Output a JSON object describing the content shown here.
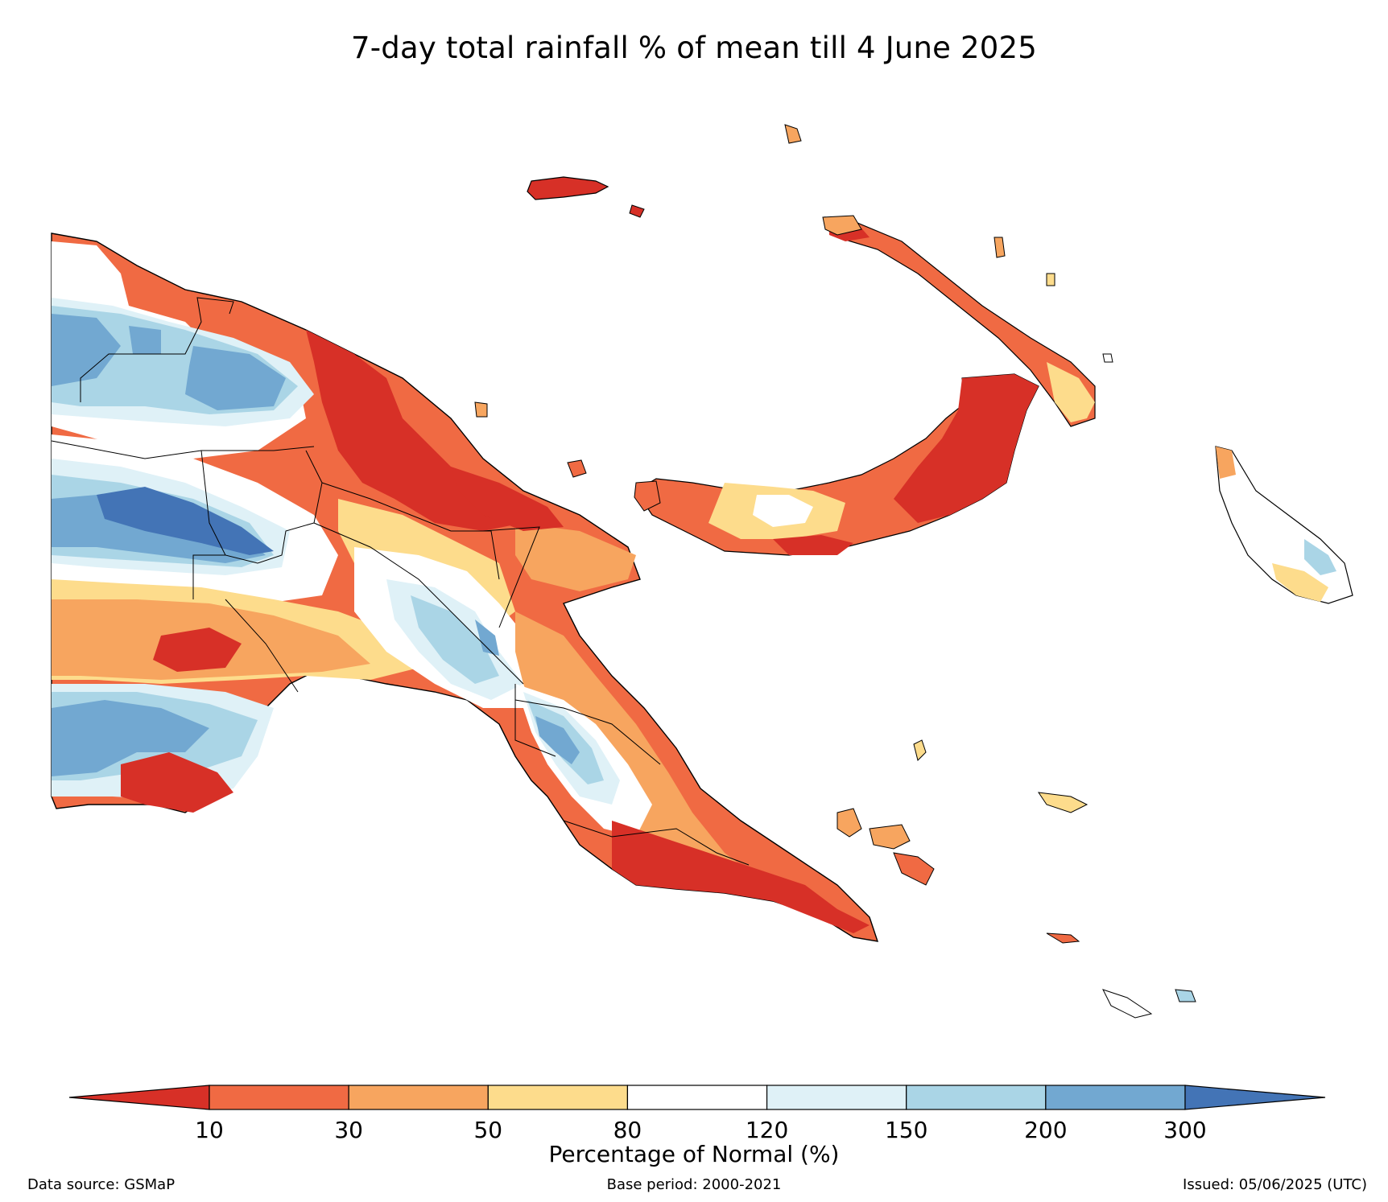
{
  "map": {
    "title": "7-day total rainfall % of mean till 4 June 2025",
    "region": "Papua New Guinea",
    "variable": "7-day total rainfall percentage of mean"
  },
  "colorbar": {
    "title": "Percentage of Normal (%)",
    "ticks": [
      "10",
      "30",
      "50",
      "80",
      "120",
      "150",
      "200",
      "300"
    ],
    "colors": [
      "#d73027",
      "#f06a43",
      "#f7a55f",
      "#fddc8c",
      "#ffffff",
      "#dff1f7",
      "#aad5e6",
      "#72a8d1",
      "#4374b6"
    ]
  },
  "footer": {
    "data_source": "Data source: GSMaP",
    "base_period": "Base period: 2000-2021",
    "issued": "Issued: 05/06/2025 (UTC)"
  }
}
